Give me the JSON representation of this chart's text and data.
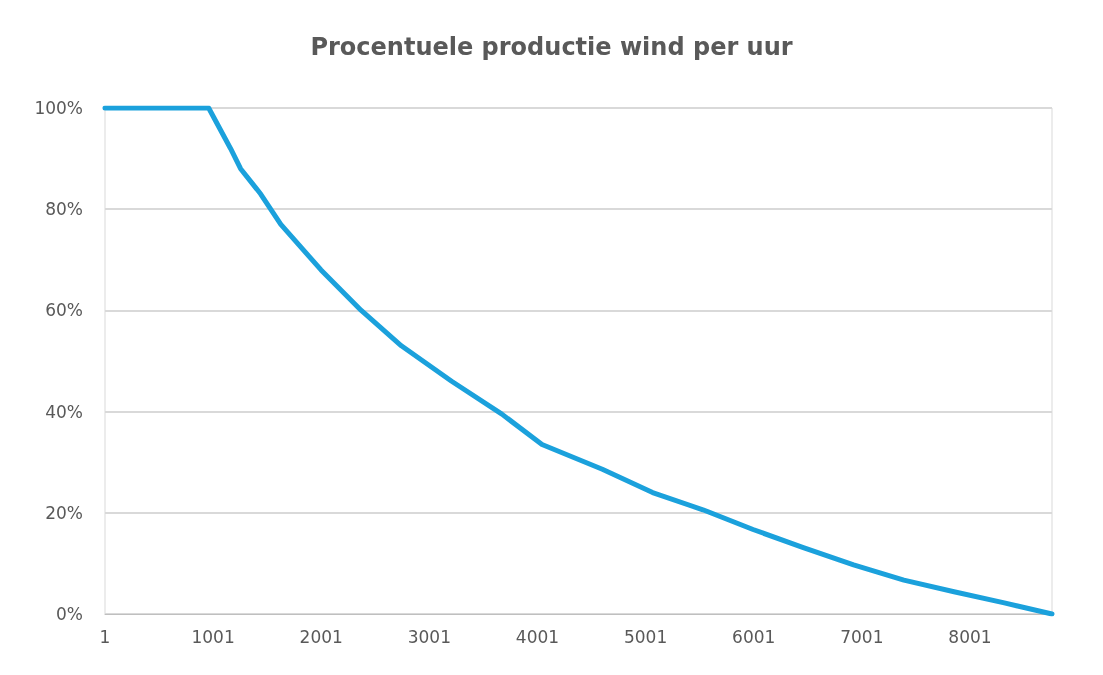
{
  "chart_data": {
    "type": "line",
    "title": "Procentuele productie wind per uur",
    "series": [
      {
        "color": "#1ba1dc",
        "x": [
          1,
          500,
          960,
          1162,
          1255,
          1441,
          1627,
          1999,
          2371,
          2742,
          3207,
          3672,
          4043,
          4601,
          5066,
          5531,
          5995,
          6460,
          6925,
          7390,
          7854,
          8319,
          8760
        ],
        "values": [
          100,
          100,
          100,
          92,
          88,
          83,
          77,
          68,
          60,
          53,
          46,
          39.5,
          33.5,
          28.6,
          24,
          20.6,
          16.7,
          13.1,
          9.7,
          6.7,
          4.4,
          2.2,
          0
        ]
      }
    ],
    "xlim": [
      1,
      8760
    ],
    "xticks": [
      1,
      1001,
      2001,
      3001,
      4001,
      5001,
      6001,
      7001,
      8001
    ],
    "ylim": [
      0,
      100
    ],
    "yticks": [
      {
        "value": 0,
        "label": "0%"
      },
      {
        "value": 20,
        "label": "20%"
      },
      {
        "value": 40,
        "label": "40%"
      },
      {
        "value": 60,
        "label": "60%"
      },
      {
        "value": 80,
        "label": "80%"
      },
      {
        "value": 100,
        "label": "100%"
      }
    ],
    "grid": "y",
    "marker": "none",
    "line_style": "solid"
  }
}
